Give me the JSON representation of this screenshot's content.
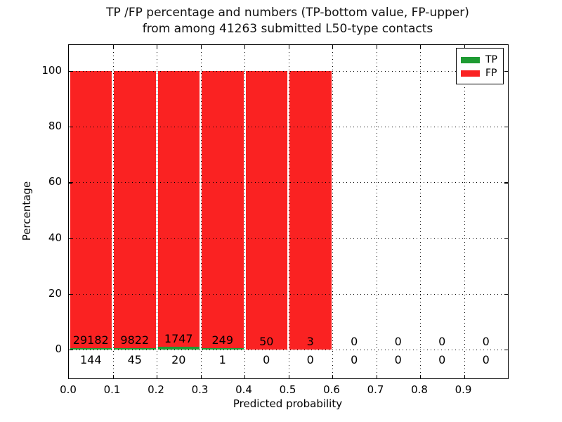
{
  "title": {
    "line1": "TP /FP percentage and numbers (TP-bottom value, FP-upper)",
    "line2": "from among 41263 submitted L50-type contacts"
  },
  "axes": {
    "xlabel": "Predicted probability",
    "ylabel": "Percentage"
  },
  "chart_data": {
    "type": "bar",
    "stacked": true,
    "title": "TP /FP percentage and numbers (TP-bottom value, FP-upper) from among 41263 submitted L50-type contacts",
    "submitted_total": 41263,
    "xlabel": "Predicted probability",
    "ylabel": "Percentage",
    "units": "percent of bin total (bars); labels show raw counts",
    "bin_edges": [
      0.0,
      0.1,
      0.2,
      0.3,
      0.4,
      0.5,
      0.6,
      0.7,
      0.8,
      0.9,
      1.0
    ],
    "x_tick_labels": [
      "0.0",
      "0.1",
      "0.2",
      "0.3",
      "0.4",
      "0.5",
      "0.6",
      "0.7",
      "0.8",
      "0.9"
    ],
    "y_ticks": [
      0,
      20,
      40,
      60,
      80,
      100
    ],
    "xlim": [
      0.0,
      1.0
    ],
    "ylim": [
      -10,
      110
    ],
    "grid": {
      "style": "dotted",
      "color": "#000000"
    },
    "legend_position": "upper right",
    "series": [
      {
        "name": "TP",
        "color": "#1e9b32",
        "counts": [
          144,
          45,
          20,
          1,
          0,
          0,
          0,
          0,
          0,
          0
        ]
      },
      {
        "name": "FP",
        "color": "#fa2222",
        "counts": [
          29182,
          9822,
          1747,
          249,
          50,
          3,
          0,
          0,
          0,
          0
        ]
      }
    ]
  }
}
